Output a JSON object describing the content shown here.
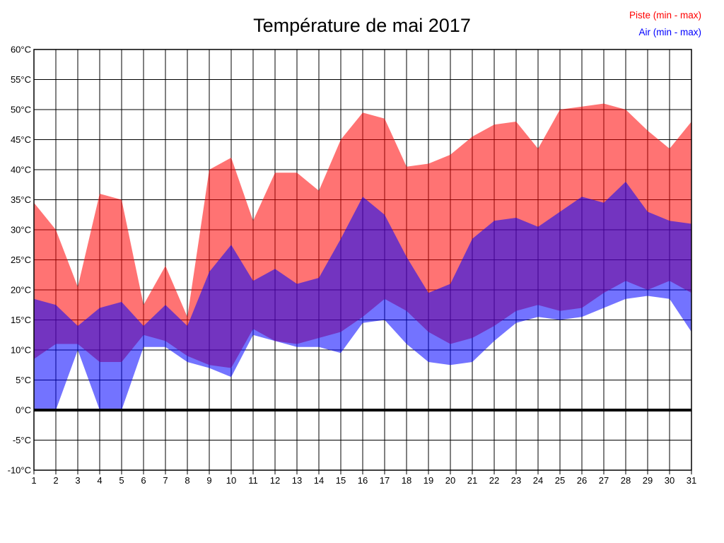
{
  "title": "Température de mai 2017",
  "legend": {
    "piste_label": "Piste (min - max)",
    "air_label": "Air (min - max)",
    "piste_color": "#ff0000",
    "air_color": "#0000ff"
  },
  "axes": {
    "y_tick_labels": [
      "60°C",
      "55°C",
      "50°C",
      "45°C",
      "40°C",
      "35°C",
      "30°C",
      "25°C",
      "20°C",
      "15°C",
      "10°C",
      "5°C",
      "0°C",
      "-5°C",
      "-10°C"
    ],
    "y_tick_values": [
      60,
      55,
      50,
      45,
      40,
      35,
      30,
      25,
      20,
      15,
      10,
      5,
      0,
      -5,
      -10
    ],
    "x_tick_labels": [
      "1",
      "2",
      "3",
      "4",
      "5",
      "6",
      "7",
      "8",
      "9",
      "10",
      "11",
      "12",
      "13",
      "14",
      "15",
      "16",
      "17",
      "18",
      "19",
      "20",
      "21",
      "22",
      "23",
      "24",
      "25",
      "26",
      "27",
      "28",
      "29",
      "30",
      "31"
    ]
  },
  "chart_data": {
    "type": "area",
    "title": "Température de mai 2017",
    "x": [
      1,
      2,
      3,
      4,
      5,
      6,
      7,
      8,
      9,
      10,
      11,
      12,
      13,
      14,
      15,
      16,
      17,
      18,
      19,
      20,
      21,
      22,
      23,
      24,
      25,
      26,
      27,
      28,
      29,
      30,
      31
    ],
    "ylim": [
      -10,
      60
    ],
    "y_tick_step": 5,
    "y_unit": "°C",
    "grid": true,
    "legend_position": "top-right",
    "zero_line": true,
    "series": [
      {
        "name": "Piste (min - max)",
        "color": "#ff0000",
        "fill_opacity": 0.55,
        "min": [
          8.5,
          11,
          11,
          8,
          8,
          12.5,
          11.5,
          9,
          7.5,
          7,
          13.5,
          11.5,
          11,
          12,
          13,
          15.5,
          18.5,
          16.5,
          13,
          11,
          12,
          14,
          16.5,
          17.5,
          16.5,
          17,
          19.5,
          21.5,
          20,
          21.5,
          19.5
        ],
        "max": [
          34.5,
          30,
          20.5,
          36,
          35,
          17.5,
          24,
          15.5,
          40,
          42,
          31.5,
          39.5,
          39.5,
          36.5,
          45,
          49.5,
          48.5,
          40.5,
          41,
          42.5,
          45.5,
          47.5,
          48,
          43.5,
          50,
          50.5,
          51,
          50,
          46.5,
          43.5,
          48
        ]
      },
      {
        "name": "Air (min - max)",
        "color": "#0000ff",
        "fill_opacity": 0.55,
        "min": [
          0,
          0,
          10,
          0,
          0,
          10.5,
          10.5,
          8,
          7,
          5.5,
          12.5,
          11.5,
          10.5,
          10.5,
          9.5,
          14.5,
          15,
          11,
          8,
          7.5,
          8,
          11.5,
          14.5,
          15.5,
          15,
          15.5,
          17,
          18.5,
          19,
          18.5,
          13
        ],
        "max": [
          18.5,
          17.5,
          14,
          17,
          18,
          14,
          17.5,
          14,
          23,
          27.5,
          21.5,
          23.5,
          21,
          22,
          28.5,
          35.5,
          32.5,
          25.5,
          19.5,
          21,
          28.5,
          31.5,
          32,
          30.5,
          33,
          35.5,
          34.5,
          38,
          33,
          31.5,
          31
        ]
      }
    ]
  }
}
